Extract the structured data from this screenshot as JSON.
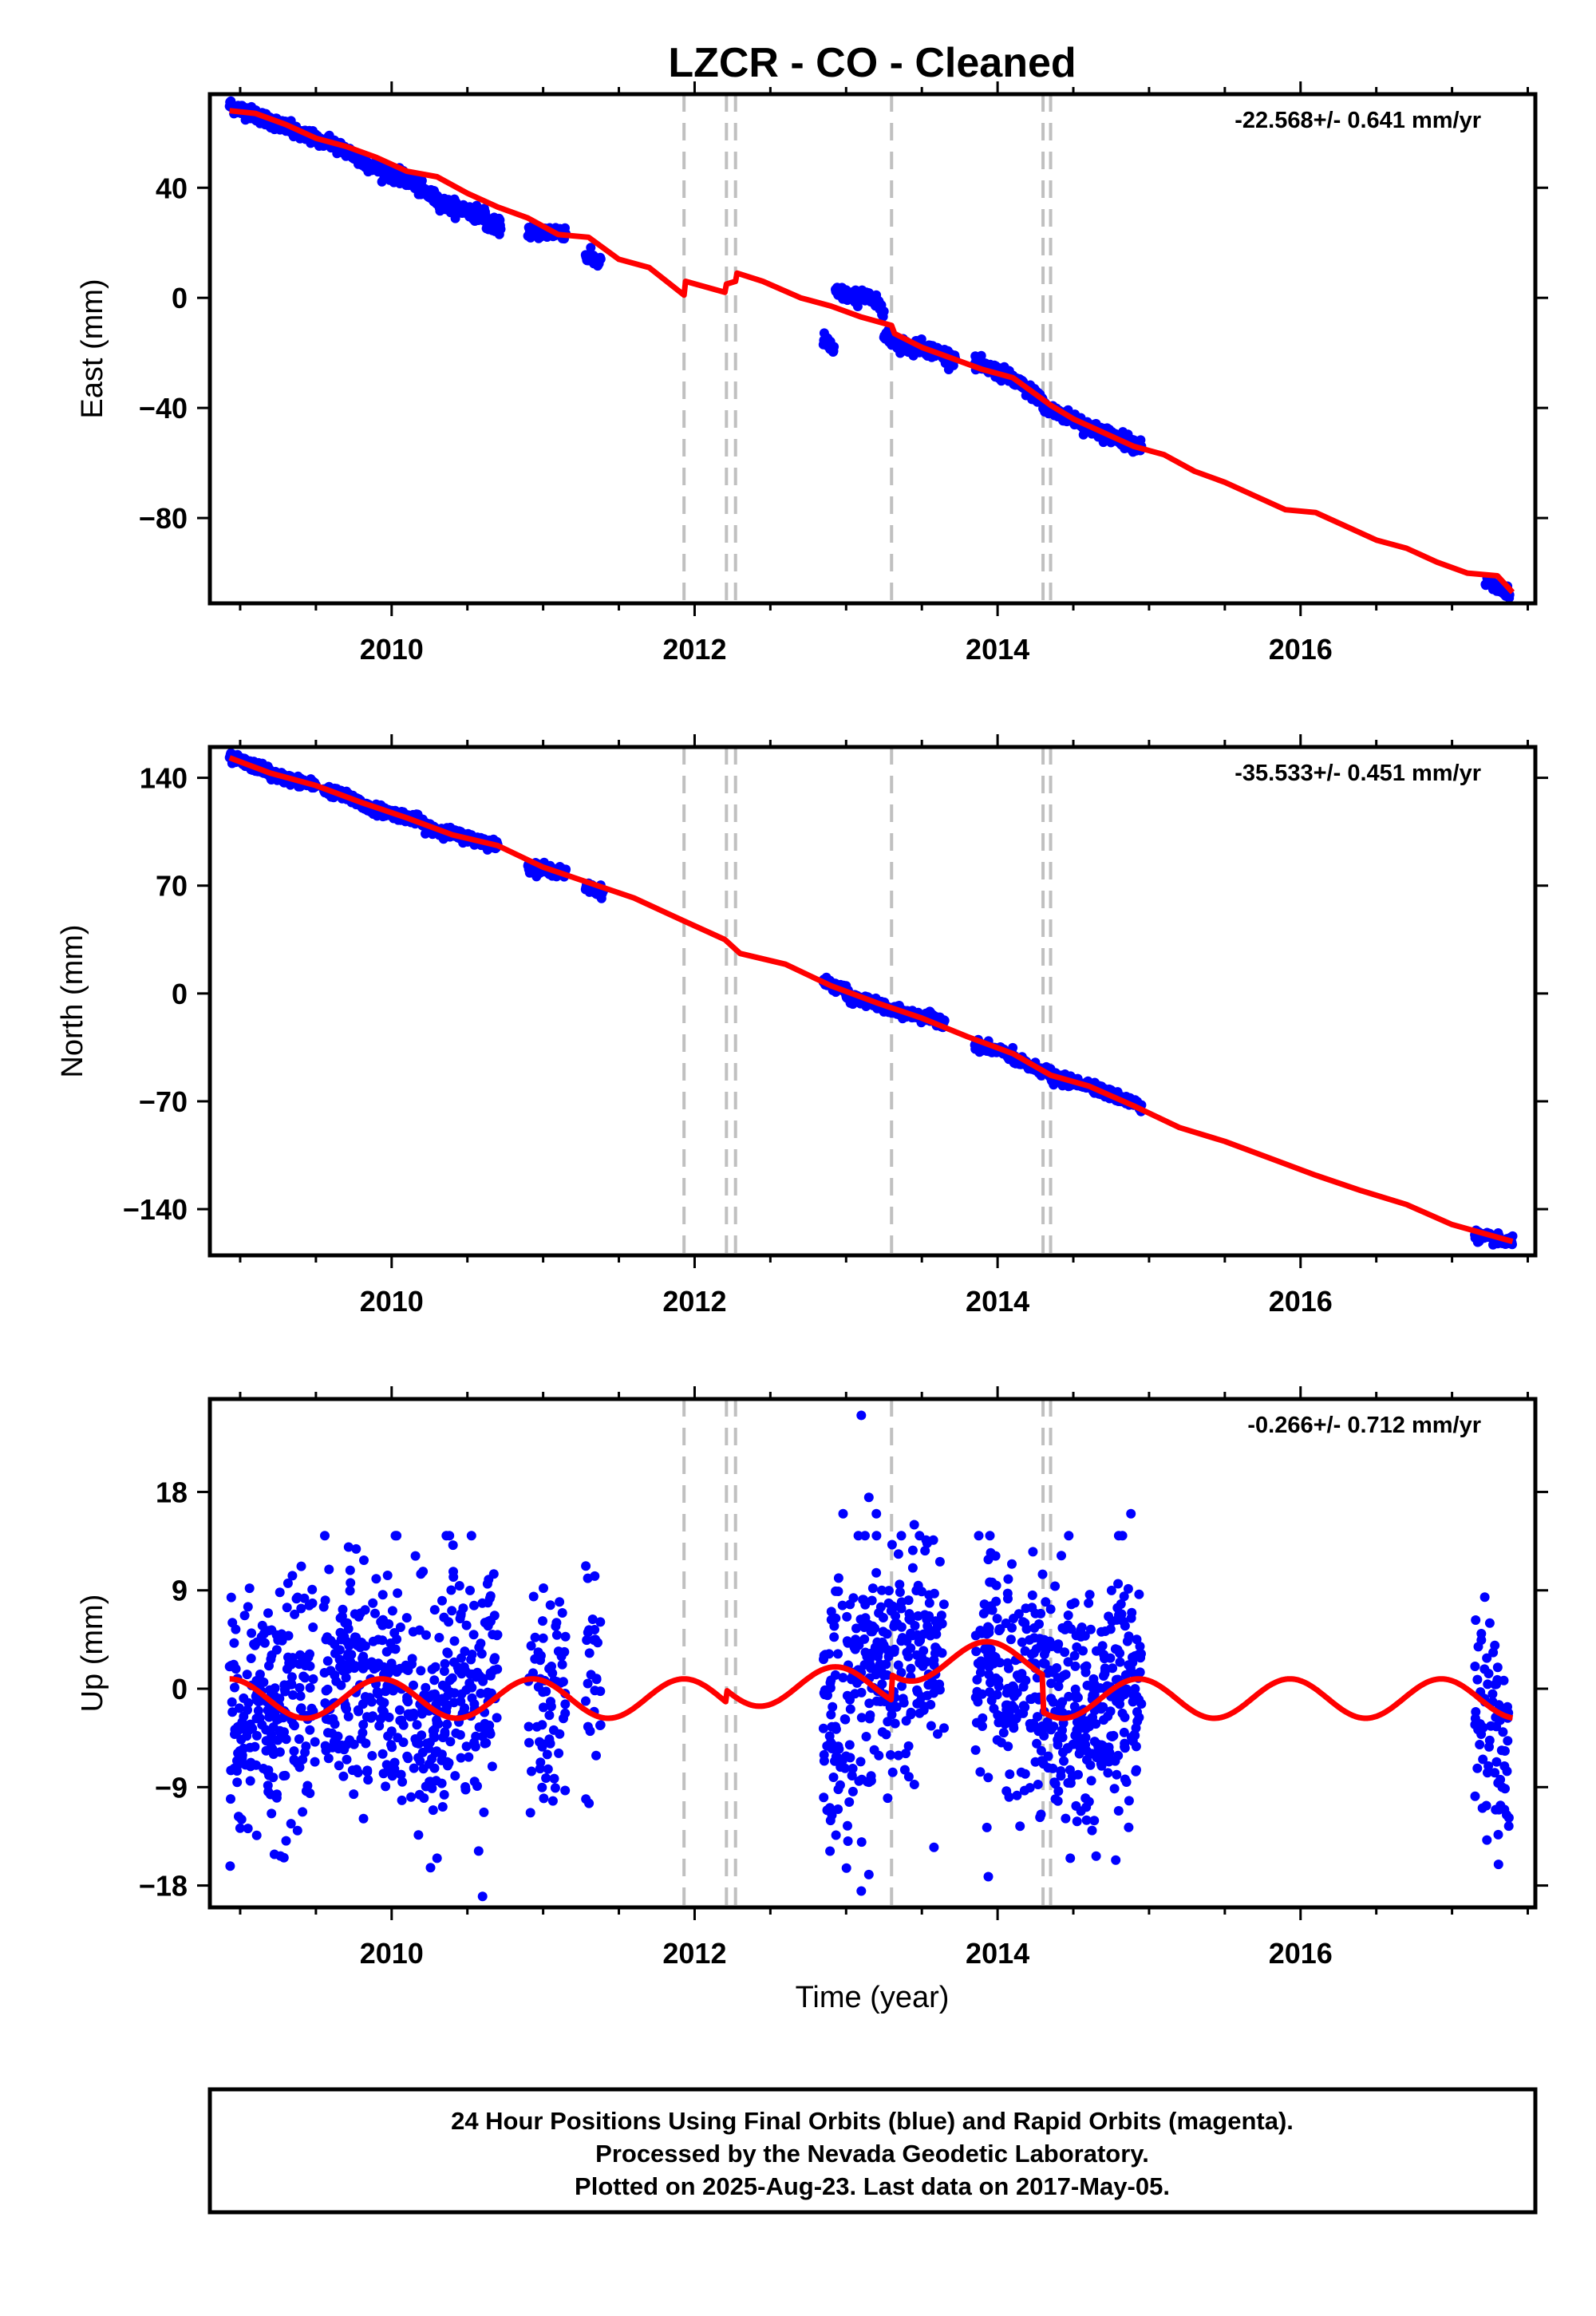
{
  "title": "LZCR  - CO - Cleaned",
  "footer": {
    "lines": [
      "24 Hour Positions Using Final Orbits (blue) and Rapid Orbits (magenta).",
      "Processed by the Nevada Geodetic Laboratory.",
      "Plotted on 2025-Aug-23. Last data on 2017-May-05."
    ]
  },
  "colors": {
    "points": "#0000ff",
    "model": "#ff0000",
    "dashed_lines": "#c0c0c0",
    "frame": "#000000"
  },
  "chart_data": [
    {
      "type": "scatter",
      "component": "East",
      "ylabel": "East (mm)",
      "xlabel": "",
      "rate_label": "-22.568+/- 0.641 mm/yr",
      "rate_mm_per_yr": -22.568,
      "xlim": [
        2008.8,
        2017.55
      ],
      "ylim": [
        -111,
        74
      ],
      "yticks": [
        40,
        0,
        -40,
        -80
      ],
      "ytick_labels": [
        "40",
        "0",
        "−40",
        "−80"
      ],
      "xticks": [
        2010,
        2012,
        2014,
        2016
      ],
      "grid": false,
      "vertical_dashed_x": [
        2011.93,
        2012.21,
        2012.27,
        2013.3,
        2014.3,
        2014.35
      ],
      "points": {
        "amplitude_mm": 1.5,
        "segments": [
          {
            "x0": 2008.93,
            "x1": 2009.12,
            "y0": 70,
            "y1": 66
          },
          {
            "x0": 2009.12,
            "x1": 2009.35,
            "y0": 66,
            "y1": 61
          },
          {
            "x0": 2009.35,
            "x1": 2009.55,
            "y0": 60,
            "y1": 57
          },
          {
            "x0": 2009.58,
            "x1": 2009.78,
            "y0": 57,
            "y1": 51
          },
          {
            "x0": 2009.78,
            "x1": 2009.95,
            "y0": 50,
            "y1": 46
          },
          {
            "x0": 2009.95,
            "x1": 2010.15,
            "y0": 46,
            "y1": 42
          },
          {
            "x0": 2010.15,
            "x1": 2010.35,
            "y0": 41,
            "y1": 34
          },
          {
            "x0": 2010.35,
            "x1": 2010.62,
            "y0": 34,
            "y1": 30
          },
          {
            "x0": 2010.62,
            "x1": 2010.72,
            "y0": 27,
            "y1": 26
          },
          {
            "x0": 2010.9,
            "x1": 2011.15,
            "y0": 24,
            "y1": 24
          },
          {
            "x0": 2011.28,
            "x1": 2011.38,
            "y0": 15,
            "y1": 13
          },
          {
            "x0": 2012.85,
            "x1": 2012.92,
            "y0": -15,
            "y1": -19
          },
          {
            "x0": 2012.93,
            "x1": 2013.08,
            "y0": 2,
            "y1": 0
          },
          {
            "x0": 2013.1,
            "x1": 2013.25,
            "y0": 2,
            "y1": -4
          },
          {
            "x0": 2013.25,
            "x1": 2013.45,
            "y0": -14,
            "y1": -19
          },
          {
            "x0": 2013.45,
            "x1": 2013.72,
            "y0": -17,
            "y1": -22
          },
          {
            "x0": 2013.85,
            "x1": 2014.05,
            "y0": -24,
            "y1": -28
          },
          {
            "x0": 2014.05,
            "x1": 2014.3,
            "y0": -28,
            "y1": -37
          },
          {
            "x0": 2014.3,
            "x1": 2014.55,
            "y0": -40,
            "y1": -45
          },
          {
            "x0": 2014.55,
            "x1": 2014.95,
            "y0": -46,
            "y1": -54
          },
          {
            "x0": 2017.22,
            "x1": 2017.38,
            "y0": -103,
            "y1": -108
          }
        ]
      },
      "model": {
        "x": [
          2008.93,
          2009.1,
          2009.3,
          2009.5,
          2009.7,
          2009.9,
          2010.1,
          2010.3,
          2010.5,
          2010.7,
          2010.9,
          2011.1,
          2011.3,
          2011.5,
          2011.7,
          2011.93,
          2011.94,
          2012.2,
          2012.21,
          2012.27,
          2012.28,
          2012.45,
          2012.7,
          2012.9,
          2013.1,
          2013.3,
          2013.32,
          2013.5,
          2013.7,
          2013.9,
          2014.1,
          2014.3,
          2014.35,
          2014.5,
          2014.7,
          2014.9,
          2015.1,
          2015.3,
          2015.5,
          2015.7,
          2015.9,
          2016.1,
          2016.3,
          2016.5,
          2016.7,
          2016.9,
          2017.1,
          2017.3,
          2017.4
        ],
        "y": [
          68,
          67,
          63,
          58,
          55,
          51,
          46,
          44,
          38,
          33,
          29,
          23,
          22,
          14,
          11,
          1,
          6,
          2,
          5,
          6,
          9,
          6,
          0,
          -3,
          -7,
          -10,
          -13,
          -18,
          -22,
          -26,
          -29,
          -37,
          -39,
          -44,
          -49,
          -54,
          -57,
          -63,
          -67,
          -72,
          -77,
          -78,
          -83,
          -88,
          -91,
          -96,
          -100,
          -101,
          -107
        ]
      }
    },
    {
      "type": "scatter",
      "component": "North",
      "ylabel": "North (mm)",
      "xlabel": "",
      "rate_label": "-35.533+/- 0.451 mm/yr",
      "rate_mm_per_yr": -35.533,
      "xlim": [
        2008.8,
        2017.55
      ],
      "ylim": [
        -170,
        160
      ],
      "yticks": [
        140,
        70,
        0,
        -70,
        -140
      ],
      "ytick_labels": [
        "140",
        "70",
        "0",
        "−70",
        "−140"
      ],
      "xticks": [
        2010,
        2012,
        2014,
        2016
      ],
      "grid": false,
      "vertical_dashed_x": [
        2011.93,
        2012.21,
        2012.27,
        2013.3,
        2014.3,
        2014.35
      ],
      "points": {
        "amplitude_mm": 2,
        "segments": [
          {
            "x0": 2008.93,
            "x1": 2009.2,
            "y0": 153,
            "y1": 144
          },
          {
            "x0": 2009.2,
            "x1": 2009.5,
            "y0": 142,
            "y1": 135
          },
          {
            "x0": 2009.55,
            "x1": 2009.8,
            "y0": 133,
            "y1": 124
          },
          {
            "x0": 2009.8,
            "x1": 2010.2,
            "y0": 122,
            "y1": 112
          },
          {
            "x0": 2010.2,
            "x1": 2010.7,
            "y0": 109,
            "y1": 96
          },
          {
            "x0": 2010.9,
            "x1": 2011.15,
            "y0": 83,
            "y1": 78
          },
          {
            "x0": 2011.28,
            "x1": 2011.4,
            "y0": 69,
            "y1": 66
          },
          {
            "x0": 2012.85,
            "x1": 2013.0,
            "y0": 8,
            "y1": 2
          },
          {
            "x0": 2013.0,
            "x1": 2013.25,
            "y0": -2,
            "y1": -8
          },
          {
            "x0": 2013.25,
            "x1": 2013.65,
            "y0": -10,
            "y1": -18
          },
          {
            "x0": 2013.85,
            "x1": 2014.1,
            "y0": -33,
            "y1": -40
          },
          {
            "x0": 2014.1,
            "x1": 2014.35,
            "y0": -43,
            "y1": -52
          },
          {
            "x0": 2014.35,
            "x1": 2014.65,
            "y0": -55,
            "y1": -60
          },
          {
            "x0": 2014.65,
            "x1": 2014.95,
            "y0": -62,
            "y1": -73
          },
          {
            "x0": 2017.15,
            "x1": 2017.4,
            "y0": -157,
            "y1": -162
          }
        ]
      },
      "model": {
        "x": [
          2008.93,
          2009.2,
          2009.5,
          2009.8,
          2010.1,
          2010.4,
          2010.7,
          2011.0,
          2011.3,
          2011.6,
          2011.93,
          2012.2,
          2012.3,
          2012.6,
          2012.9,
          2013.2,
          2013.5,
          2013.8,
          2014.1,
          2014.35,
          2014.6,
          2014.9,
          2015.2,
          2015.5,
          2015.8,
          2016.1,
          2016.4,
          2016.7,
          2017.0,
          2017.4
        ],
        "y": [
          153,
          143,
          135,
          124,
          114,
          103,
          96,
          82,
          72,
          62,
          47,
          35,
          26,
          19,
          5,
          -6,
          -16,
          -28,
          -39,
          -53,
          -60,
          -73,
          -87,
          -96,
          -107,
          -118,
          -128,
          -137,
          -150,
          -161
        ]
      }
    },
    {
      "type": "scatter",
      "component": "Up",
      "ylabel": "Up (mm)",
      "xlabel": "Time (year)",
      "rate_label": "-0.266+/- 0.712 mm/yr",
      "rate_mm_per_yr": -0.266,
      "xlim": [
        2008.8,
        2017.55
      ],
      "ylim": [
        -20,
        26.5
      ],
      "yticks": [
        18,
        9,
        0,
        -9,
        -18
      ],
      "ytick_labels": [
        "18",
        "9",
        "0",
        "−9",
        "−18"
      ],
      "xticks": [
        2010,
        2012,
        2014,
        2016
      ],
      "grid": false,
      "vertical_dashed_x": [
        2011.93,
        2012.21,
        2012.27,
        2013.3,
        2014.3,
        2014.35
      ],
      "points": {
        "spread_mm": 5.5,
        "segments": [
          {
            "x0": 2008.93,
            "x1": 2009.5,
            "center": -2,
            "n": 220
          },
          {
            "x0": 2009.55,
            "x1": 2010.05,
            "center": 1,
            "n": 190
          },
          {
            "x0": 2010.05,
            "x1": 2010.35,
            "center": -1.5,
            "n": 110
          },
          {
            "x0": 2010.35,
            "x1": 2010.7,
            "center": 0.5,
            "n": 130
          },
          {
            "x0": 2010.9,
            "x1": 2011.15,
            "center": -1,
            "n": 70
          },
          {
            "x0": 2011.28,
            "x1": 2011.38,
            "center": 0,
            "n": 28
          },
          {
            "x0": 2012.85,
            "x1": 2013.05,
            "center": -2.5,
            "n": 80
          },
          {
            "x0": 2013.05,
            "x1": 2013.3,
            "center": 1.5,
            "n": 95
          },
          {
            "x0": 2013.3,
            "x1": 2013.65,
            "center": 3,
            "n": 120
          },
          {
            "x0": 2013.85,
            "x1": 2014.1,
            "center": 1.5,
            "n": 95
          },
          {
            "x0": 2014.1,
            "x1": 2014.35,
            "center": -0.5,
            "n": 90
          },
          {
            "x0": 2014.35,
            "x1": 2014.7,
            "center": -2,
            "n": 150
          },
          {
            "x0": 2014.7,
            "x1": 2014.95,
            "center": 0.5,
            "n": 110
          },
          {
            "x0": 2017.15,
            "x1": 2017.38,
            "center": -3,
            "n": 75
          }
        ],
        "outliers": [
          [
            2013.1,
            25
          ],
          [
            2013.15,
            17.5
          ],
          [
            2013.2,
            16
          ],
          [
            2012.98,
            16
          ],
          [
            2013.45,
            15
          ],
          [
            2014.88,
            16
          ],
          [
            2013.1,
            -18.5
          ],
          [
            2013.15,
            -17
          ],
          [
            2010.6,
            -19
          ],
          [
            2010.3,
            -15.5
          ],
          [
            2013.58,
            -14.5
          ],
          [
            2014.48,
            -15.5
          ]
        ]
      },
      "model": {
        "kind": "annual_sinusoid",
        "amplitude_mm": 1.8,
        "period_yr": 1.0,
        "phase_yr": 2008.93,
        "x_range": [
          2008.93,
          2017.4
        ],
        "offsets": [
          {
            "x0": 2008.93,
            "x1": 2011.93,
            "offset": -0.9
          },
          {
            "x0": 2011.93,
            "x1": 2012.21,
            "offset": -0.9
          },
          {
            "x0": 2012.21,
            "x1": 2013.3,
            "offset": 0.2
          },
          {
            "x0": 2013.3,
            "x1": 2014.3,
            "offset": 2.5
          },
          {
            "x0": 2014.3,
            "x1": 2017.4,
            "offset": -0.9
          }
        ]
      }
    }
  ]
}
